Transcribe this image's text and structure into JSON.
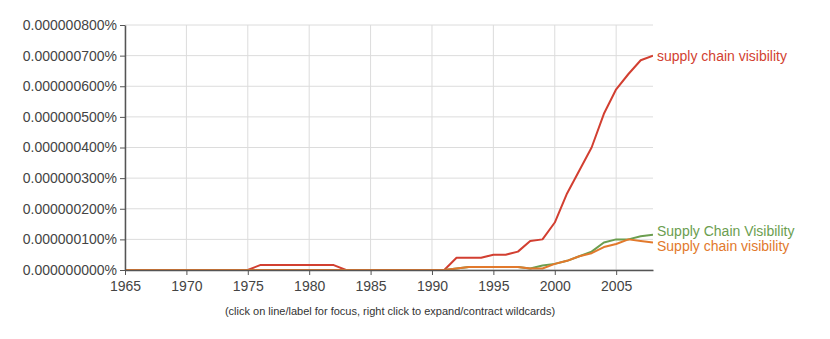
{
  "chart_data": {
    "type": "line",
    "annotations": [
      "(click on line/label for focus, right click to expand/contract wildcards)"
    ],
    "x": [
      1965,
      1966,
      1967,
      1968,
      1969,
      1970,
      1971,
      1972,
      1973,
      1974,
      1975,
      1976,
      1977,
      1978,
      1979,
      1980,
      1981,
      1982,
      1983,
      1984,
      1985,
      1986,
      1987,
      1988,
      1989,
      1990,
      1991,
      1992,
      1993,
      1994,
      1995,
      1996,
      1997,
      1998,
      1999,
      2000,
      2001,
      2002,
      2003,
      2004,
      2005,
      2006,
      2007,
      2008
    ],
    "series": [
      {
        "name": "supply chain visibility",
        "color": "#d23f31",
        "values": [
          0,
          0,
          0,
          0,
          0,
          0,
          0,
          0,
          0,
          0,
          0,
          1.6e-08,
          1.6e-08,
          1.6e-08,
          1.6e-08,
          1.6e-08,
          1.6e-08,
          1.6e-08,
          0,
          0,
          0,
          0,
          0,
          0,
          0,
          0,
          0,
          4e-08,
          4e-08,
          4e-08,
          5e-08,
          5e-08,
          6e-08,
          9.5e-08,
          1e-07,
          1.55e-07,
          2.5e-07,
          3.25e-07,
          4e-07,
          5.1e-07,
          5.9e-07,
          6.4e-07,
          6.85e-07,
          7e-07
        ]
      },
      {
        "name": "Supply Chain Visibility",
        "color": "#6b9e4f",
        "values": [
          0,
          0,
          0,
          0,
          0,
          0,
          0,
          0,
          0,
          0,
          0,
          0,
          0,
          0,
          0,
          0,
          0,
          0,
          0,
          0,
          0,
          0,
          0,
          0,
          0,
          0,
          0,
          5e-09,
          1e-08,
          1e-08,
          1e-08,
          1e-08,
          1e-08,
          5e-09,
          1.5e-08,
          2e-08,
          3e-08,
          4.5e-08,
          6e-08,
          9e-08,
          1e-07,
          1e-07,
          1.1e-07,
          1.15e-07
        ]
      },
      {
        "name": "Supply chain visibility",
        "color": "#e2792c",
        "values": [
          0,
          0,
          0,
          0,
          0,
          0,
          0,
          0,
          0,
          0,
          0,
          0,
          0,
          0,
          0,
          0,
          0,
          0,
          0,
          0,
          0,
          0,
          0,
          0,
          0,
          0,
          0,
          5e-09,
          1e-08,
          1e-08,
          1e-08,
          1e-08,
          1e-08,
          5e-09,
          5e-09,
          2e-08,
          3e-08,
          4.5e-08,
          5.5e-08,
          7.5e-08,
          8.5e-08,
          1e-07,
          9.5e-08,
          9e-08
        ]
      }
    ],
    "xlim": [
      1965,
      2008
    ],
    "xticks": [
      1965,
      1970,
      1975,
      1980,
      1985,
      1990,
      1995,
      2000,
      2005
    ],
    "ylim": [
      0,
      8e-07
    ],
    "yticks": [
      {
        "value": 0,
        "label": "0.000000000%"
      },
      {
        "value": 1e-07,
        "label": "0.000000100%"
      },
      {
        "value": 2e-07,
        "label": "0.000000200%"
      },
      {
        "value": 3e-07,
        "label": "0.000000300%"
      },
      {
        "value": 4e-07,
        "label": "0.000000400%"
      },
      {
        "value": 5e-07,
        "label": "0.000000500%"
      },
      {
        "value": 6e-07,
        "label": "0.000000600%"
      },
      {
        "value": 7e-07,
        "label": "0.000000700%"
      },
      {
        "value": 8e-07,
        "label": "0.000000800%"
      }
    ],
    "grid": true
  }
}
